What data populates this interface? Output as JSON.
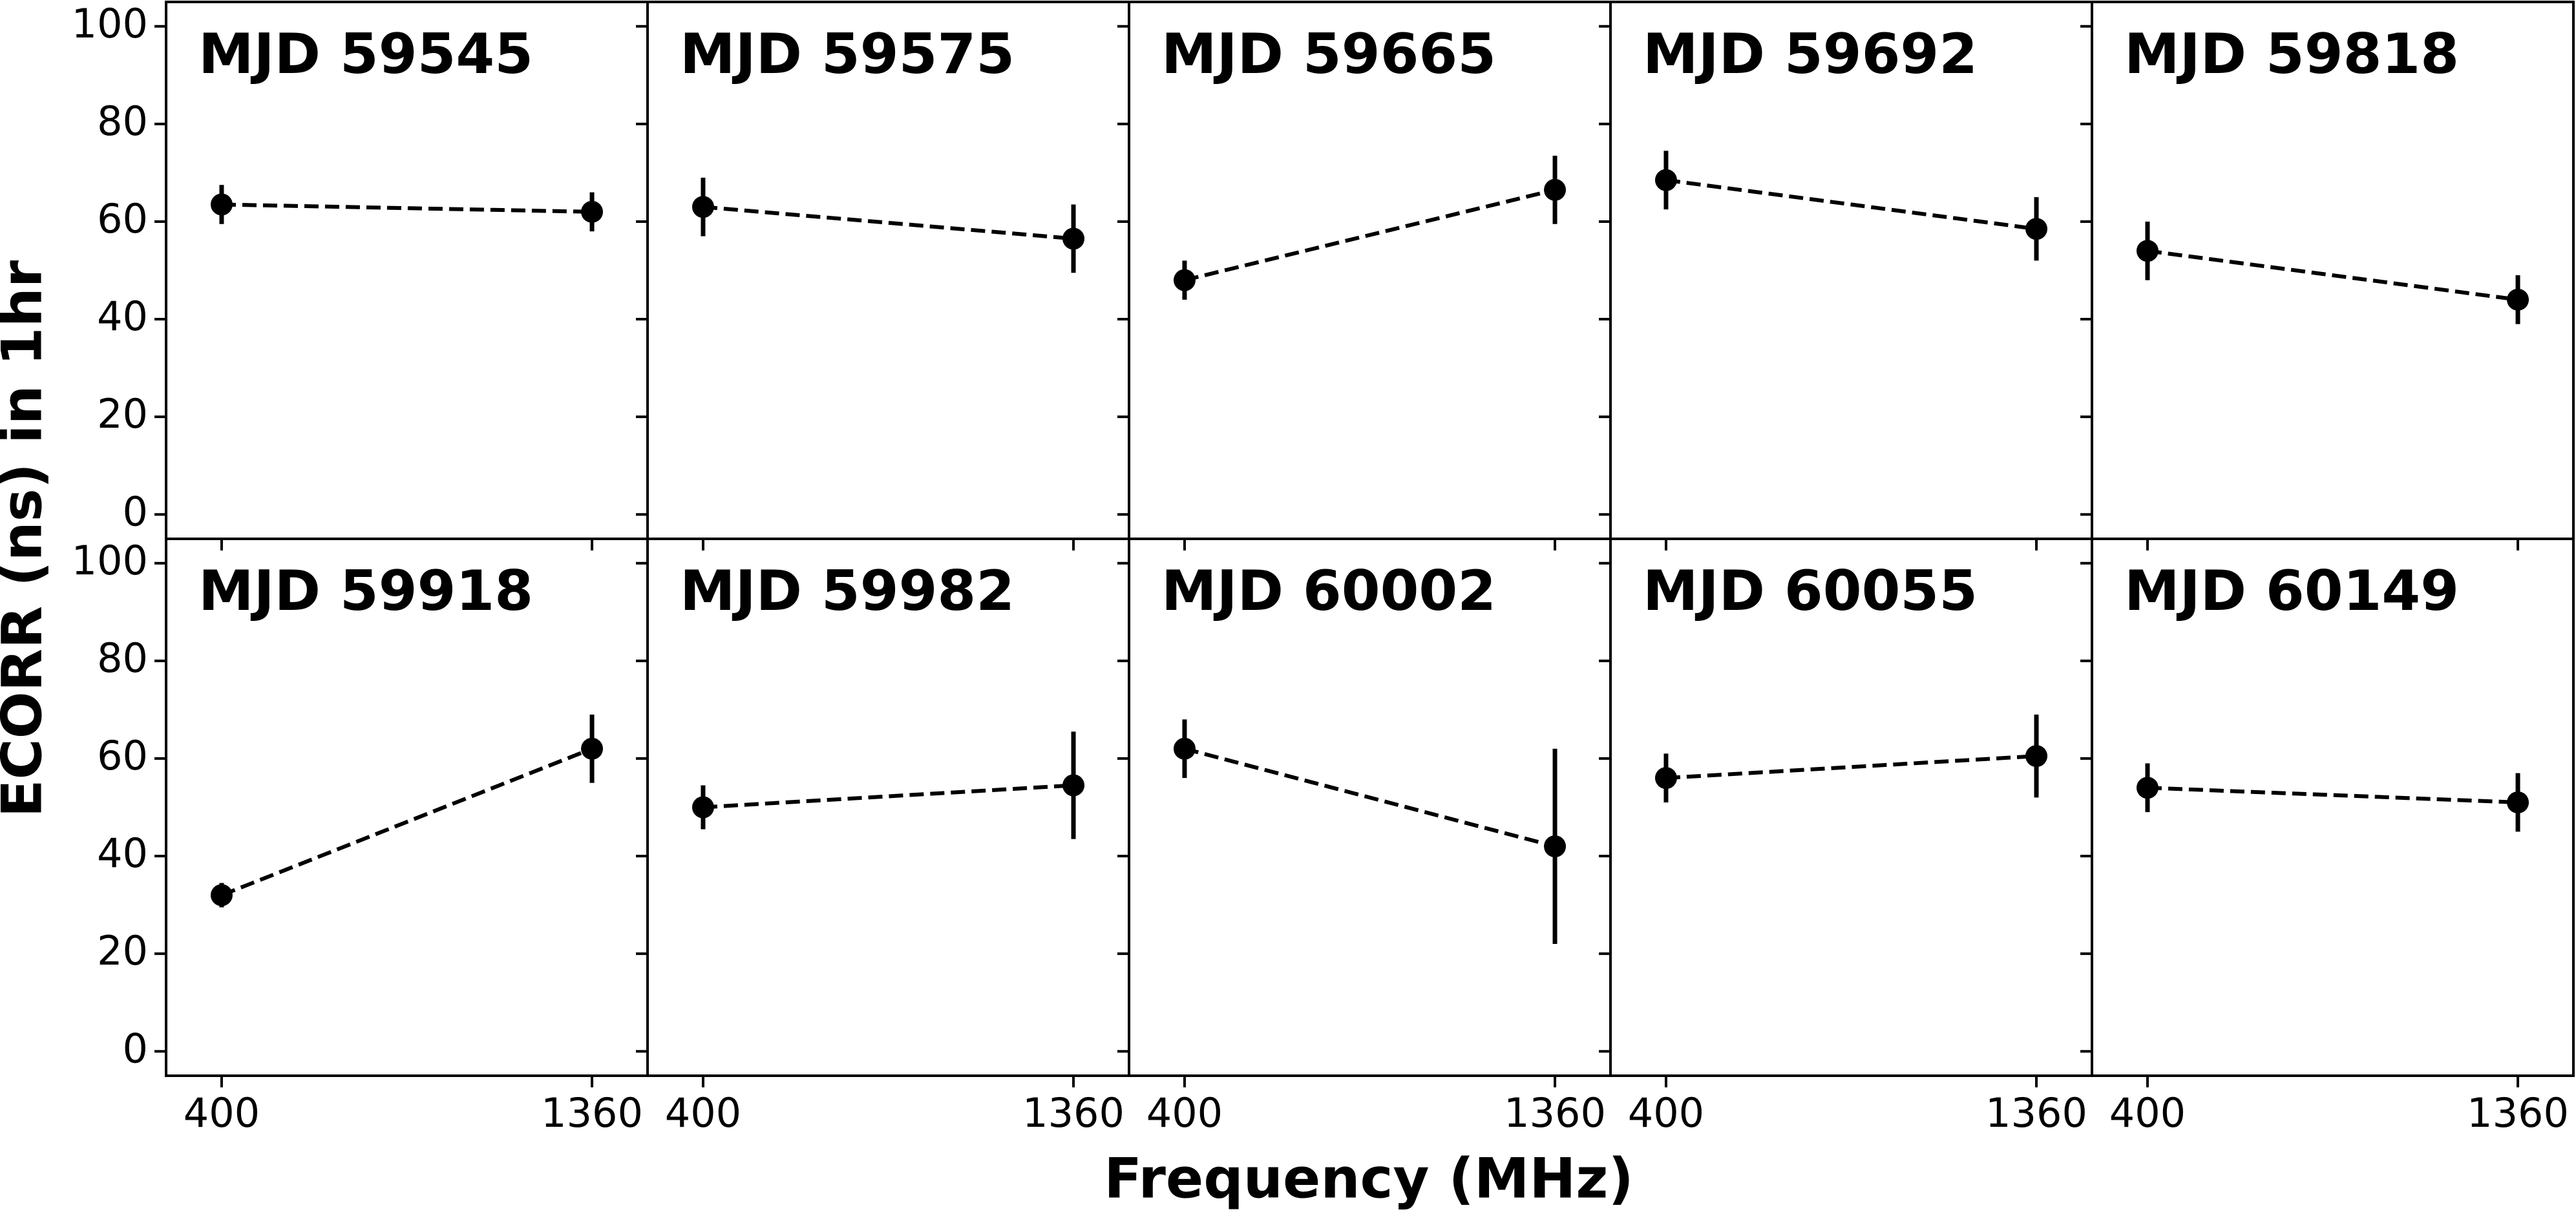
{
  "xlabel": "Frequency (MHz)",
  "ylabel": "ECORR (ns) in 1hr",
  "chart_data": [
    {
      "type": "line",
      "title": "MJD 59545",
      "x": [
        400,
        1360
      ],
      "values": [
        63.5,
        62
      ],
      "errors": [
        4,
        4
      ],
      "color": "#000000",
      "xlim": [
        256,
        1504
      ],
      "ylim": [
        -5,
        105
      ],
      "xticks": [
        400,
        1360
      ],
      "yticks": [
        0,
        20,
        40,
        60,
        80,
        100
      ]
    },
    {
      "type": "line",
      "title": "MJD 59575",
      "x": [
        400,
        1360
      ],
      "values": [
        63,
        56.5
      ],
      "errors": [
        6,
        7
      ],
      "color": "#000000",
      "xlim": [
        256,
        1504
      ],
      "ylim": [
        -5,
        105
      ],
      "xticks": [
        400,
        1360
      ],
      "yticks": [
        0,
        20,
        40,
        60,
        80,
        100
      ]
    },
    {
      "type": "line",
      "title": "MJD 59665",
      "x": [
        400,
        1360
      ],
      "values": [
        48,
        66.5
      ],
      "errors": [
        4,
        7
      ],
      "color": "#000000",
      "xlim": [
        256,
        1504
      ],
      "ylim": [
        -5,
        105
      ],
      "xticks": [
        400,
        1360
      ],
      "yticks": [
        0,
        20,
        40,
        60,
        80,
        100
      ]
    },
    {
      "type": "line",
      "title": "MJD 59692",
      "x": [
        400,
        1360
      ],
      "values": [
        68.5,
        58.5
      ],
      "errors": [
        6,
        6.5
      ],
      "color": "#000000",
      "xlim": [
        256,
        1504
      ],
      "ylim": [
        -5,
        105
      ],
      "xticks": [
        400,
        1360
      ],
      "yticks": [
        0,
        20,
        40,
        60,
        80,
        100
      ]
    },
    {
      "type": "line",
      "title": "MJD 59818",
      "x": [
        400,
        1360
      ],
      "values": [
        54,
        44
      ],
      "errors": [
        6,
        5
      ],
      "color": "#000000",
      "xlim": [
        256,
        1504
      ],
      "ylim": [
        -5,
        105
      ],
      "xticks": [
        400,
        1360
      ],
      "yticks": [
        0,
        20,
        40,
        60,
        80,
        100
      ]
    },
    {
      "type": "line",
      "title": "MJD 59918",
      "x": [
        400,
        1360
      ],
      "values": [
        32,
        62
      ],
      "errors": [
        2.5,
        7
      ],
      "color": "#000000",
      "xlim": [
        256,
        1504
      ],
      "ylim": [
        -5,
        105
      ],
      "xticks": [
        400,
        1360
      ],
      "yticks": [
        0,
        20,
        40,
        60,
        80,
        100
      ]
    },
    {
      "type": "line",
      "title": "MJD 59982",
      "x": [
        400,
        1360
      ],
      "values": [
        50,
        54.5
      ],
      "errors": [
        4.5,
        11
      ],
      "color": "#000000",
      "xlim": [
        256,
        1504
      ],
      "ylim": [
        -5,
        105
      ],
      "xticks": [
        400,
        1360
      ],
      "yticks": [
        0,
        20,
        40,
        60,
        80,
        100
      ]
    },
    {
      "type": "line",
      "title": "MJD 60002",
      "x": [
        400,
        1360
      ],
      "values": [
        62,
        42
      ],
      "errors": [
        6,
        20
      ],
      "color": "#000000",
      "xlim": [
        256,
        1504
      ],
      "ylim": [
        -5,
        105
      ],
      "xticks": [
        400,
        1360
      ],
      "yticks": [
        0,
        20,
        40,
        60,
        80,
        100
      ]
    },
    {
      "type": "line",
      "title": "MJD 60055",
      "x": [
        400,
        1360
      ],
      "values": [
        56,
        60.5
      ],
      "errors": [
        5,
        8.5
      ],
      "color": "#000000",
      "xlim": [
        256,
        1504
      ],
      "ylim": [
        -5,
        105
      ],
      "xticks": [
        400,
        1360
      ],
      "yticks": [
        0,
        20,
        40,
        60,
        80,
        100
      ]
    },
    {
      "type": "line",
      "title": "MJD 60149",
      "x": [
        400,
        1360
      ],
      "values": [
        54,
        51
      ],
      "errors": [
        5,
        6
      ],
      "color": "#000000",
      "xlim": [
        256,
        1504
      ],
      "ylim": [
        -5,
        105
      ],
      "xticks": [
        400,
        1360
      ],
      "yticks": [
        0,
        20,
        40,
        60,
        80,
        100
      ]
    }
  ]
}
